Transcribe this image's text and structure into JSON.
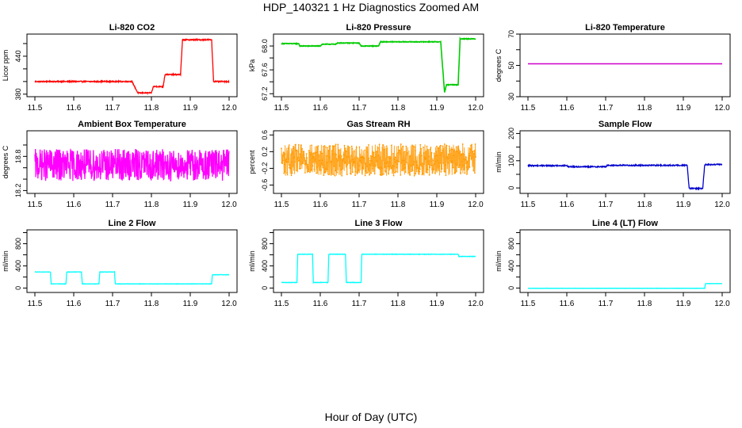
{
  "page": {
    "title": "HDP_140321  1 Hz Diagnostics Zoomed AM",
    "xlabel": "Hour of Day (UTC)"
  },
  "chart_data": [
    {
      "type": "line",
      "title": "Li-820 CO2",
      "ylabel": "Licor ppm",
      "color": "#ff0000",
      "xlim": [
        11.5,
        12.0
      ],
      "ylim": [
        376,
        475
      ],
      "xticks": [
        "11.5",
        "11.6",
        "11.7",
        "11.8",
        "11.9",
        "12.0"
      ],
      "yticks": [
        380,
        400,
        420,
        440,
        460
      ],
      "ytick_labels": [
        "380",
        "",
        "",
        "440",
        ""
      ],
      "series": [
        {
          "steps": [
            [
              11.5,
              400
            ],
            [
              11.75,
              400
            ],
            [
              11.765,
              382
            ],
            [
              11.8,
              382
            ],
            [
              11.805,
              392
            ],
            [
              11.83,
              392
            ],
            [
              11.835,
              411
            ],
            [
              11.875,
              411
            ],
            [
              11.88,
              466
            ],
            [
              11.955,
              466
            ],
            [
              11.96,
              400
            ],
            [
              12.0,
              400
            ]
          ],
          "noise": 0.8
        }
      ]
    },
    {
      "type": "line",
      "title": "Li-820 Pressure",
      "ylabel": "kPa",
      "color": "#00cc00",
      "xlim": [
        11.5,
        12.0
      ],
      "ylim": [
        67.15,
        68.2
      ],
      "xticks": [
        "11.5",
        "11.6",
        "11.7",
        "11.8",
        "11.9",
        "12.0"
      ],
      "yticks": [
        67.2,
        67.4,
        67.6,
        67.8,
        68.0
      ],
      "ytick_labels": [
        "67.2",
        "",
        "67.6",
        "",
        "68.0"
      ],
      "series": [
        {
          "steps": [
            [
              11.5,
              68.04
            ],
            [
              11.545,
              68.04
            ],
            [
              11.547,
              68.0
            ],
            [
              11.6,
              68.0
            ],
            [
              11.605,
              68.03
            ],
            [
              11.64,
              68.03
            ],
            [
              11.645,
              68.05
            ],
            [
              11.7,
              68.05
            ],
            [
              11.705,
              68.0
            ],
            [
              11.75,
              68.0
            ],
            [
              11.755,
              68.07
            ],
            [
              11.91,
              68.07
            ],
            [
              11.92,
              67.22
            ],
            [
              11.925,
              67.35
            ],
            [
              11.955,
              67.35
            ],
            [
              11.96,
              68.12
            ],
            [
              12.0,
              68.12
            ]
          ],
          "noise": 0.005
        }
      ]
    },
    {
      "type": "line",
      "title": "Li-820 Temperature",
      "ylabel": "degrees C",
      "color": "#cc00cc",
      "xlim": [
        11.5,
        12.0
      ],
      "ylim": [
        30,
        70
      ],
      "xticks": [
        "11.5",
        "11.6",
        "11.7",
        "11.8",
        "11.9",
        "12.0"
      ],
      "yticks": [
        30,
        40,
        50,
        60,
        70
      ],
      "ytick_labels": [
        "30",
        "",
        "50",
        "",
        "70"
      ],
      "series": [
        {
          "steps": [
            [
              11.5,
              51
            ],
            [
              12.0,
              51
            ]
          ],
          "noise": 0
        }
      ]
    },
    {
      "type": "line",
      "title": "Ambient Box Temperature",
      "ylabel": "degrees C",
      "color": "#ff00ff",
      "xlim": [
        11.5,
        12.0
      ],
      "ylim": [
        18.15,
        19.25
      ],
      "xticks": [
        "11.5",
        "11.6",
        "11.7",
        "11.8",
        "11.9",
        "12.0"
      ],
      "yticks": [
        18.2,
        18.4,
        18.6,
        18.8,
        19.0
      ],
      "ytick_labels": [
        "18.2",
        "",
        "",
        "18.8",
        ""
      ],
      "series": [
        {
          "steps": [
            [
              11.5,
              18.65
            ],
            [
              12.0,
              18.65
            ]
          ],
          "noise": 0.28
        }
      ]
    },
    {
      "type": "scatter",
      "title": "Gas Stream RH",
      "ylabel": "percent",
      "color": "#ff9900",
      "xlim": [
        11.5,
        12.0
      ],
      "ylim": [
        -0.8,
        0.7
      ],
      "xticks": [
        "11.5",
        "11.6",
        "11.7",
        "11.8",
        "11.9",
        "12.0"
      ],
      "yticks": [
        -0.6,
        -0.2,
        0.2,
        0.6
      ],
      "ytick_labels": [
        "-0.6",
        "-0.2",
        "0.2",
        "0.6"
      ],
      "series": [
        {
          "steps": [
            [
              11.5,
              0.0
            ],
            [
              12.0,
              0.0
            ]
          ],
          "noise": 0.38
        }
      ]
    },
    {
      "type": "line",
      "title": "Sample Flow",
      "ylabel": "ml/min",
      "color": "#0000cc",
      "xlim": [
        11.5,
        12.0
      ],
      "ylim": [
        -20,
        210
      ],
      "xticks": [
        "11.5",
        "11.6",
        "11.7",
        "11.8",
        "11.9",
        "12.0"
      ],
      "yticks": [
        0,
        50,
        100,
        150,
        200
      ],
      "ytick_labels": [
        "0",
        "",
        "100",
        "",
        "200"
      ],
      "series": [
        {
          "steps": [
            [
              11.5,
              82
            ],
            [
              11.6,
              82
            ],
            [
              11.605,
              78
            ],
            [
              11.7,
              78
            ],
            [
              11.705,
              83
            ],
            [
              11.91,
              83
            ],
            [
              11.915,
              -2
            ],
            [
              11.95,
              -2
            ],
            [
              11.955,
              86
            ],
            [
              12.0,
              86
            ]
          ],
          "noise": 2
        }
      ]
    },
    {
      "type": "line",
      "title": "Line 2 Flow",
      "ylabel": "ml/min",
      "color": "#00ffff",
      "xlim": [
        11.5,
        12.0
      ],
      "ylim": [
        -80,
        1050
      ],
      "xticks": [
        "11.5",
        "11.6",
        "11.7",
        "11.8",
        "11.9",
        "12.0"
      ],
      "yticks": [
        0,
        200,
        400,
        600,
        800,
        1000
      ],
      "ytick_labels": [
        "0",
        "",
        "400",
        "",
        "800",
        ""
      ],
      "series": [
        {
          "steps": [
            [
              11.5,
              290
            ],
            [
              11.54,
              290
            ],
            [
              11.542,
              75
            ],
            [
              11.58,
              75
            ],
            [
              11.582,
              290
            ],
            [
              11.62,
              290
            ],
            [
              11.622,
              75
            ],
            [
              11.665,
              75
            ],
            [
              11.667,
              290
            ],
            [
              11.705,
              290
            ],
            [
              11.707,
              75
            ],
            [
              11.955,
              75
            ],
            [
              11.957,
              240
            ],
            [
              12.0,
              240
            ]
          ],
          "noise": 3
        }
      ]
    },
    {
      "type": "line",
      "title": "Line 3 Flow",
      "ylabel": "ml/min",
      "color": "#00ffff",
      "xlim": [
        11.5,
        12.0
      ],
      "ylim": [
        -80,
        1050
      ],
      "xticks": [
        "11.5",
        "11.6",
        "11.7",
        "11.8",
        "11.9",
        "12.0"
      ],
      "yticks": [
        0,
        200,
        400,
        600,
        800,
        1000
      ],
      "ytick_labels": [
        "0",
        "",
        "400",
        "",
        "800",
        ""
      ],
      "series": [
        {
          "steps": [
            [
              11.5,
              100
            ],
            [
              11.54,
              100
            ],
            [
              11.542,
              610
            ],
            [
              11.58,
              610
            ],
            [
              11.582,
              100
            ],
            [
              11.62,
              100
            ],
            [
              11.622,
              610
            ],
            [
              11.665,
              610
            ],
            [
              11.667,
              100
            ],
            [
              11.705,
              100
            ],
            [
              11.707,
              610
            ],
            [
              11.955,
              610
            ],
            [
              11.957,
              570
            ],
            [
              12.0,
              570
            ]
          ],
          "noise": 4
        }
      ]
    },
    {
      "type": "line",
      "title": "Line 4 (LT) Flow",
      "ylabel": "ml/min",
      "color": "#00ffff",
      "xlim": [
        11.5,
        12.0
      ],
      "ylim": [
        -80,
        1050
      ],
      "xticks": [
        "11.5",
        "11.6",
        "11.7",
        "11.8",
        "11.9",
        "12.0"
      ],
      "yticks": [
        0,
        200,
        400,
        600,
        800,
        1000
      ],
      "ytick_labels": [
        "0",
        "",
        "400",
        "",
        "800",
        ""
      ],
      "series": [
        {
          "steps": [
            [
              11.5,
              -5
            ],
            [
              11.955,
              -5
            ],
            [
              11.957,
              80
            ],
            [
              12.0,
              80
            ]
          ],
          "noise": 2
        }
      ]
    }
  ]
}
